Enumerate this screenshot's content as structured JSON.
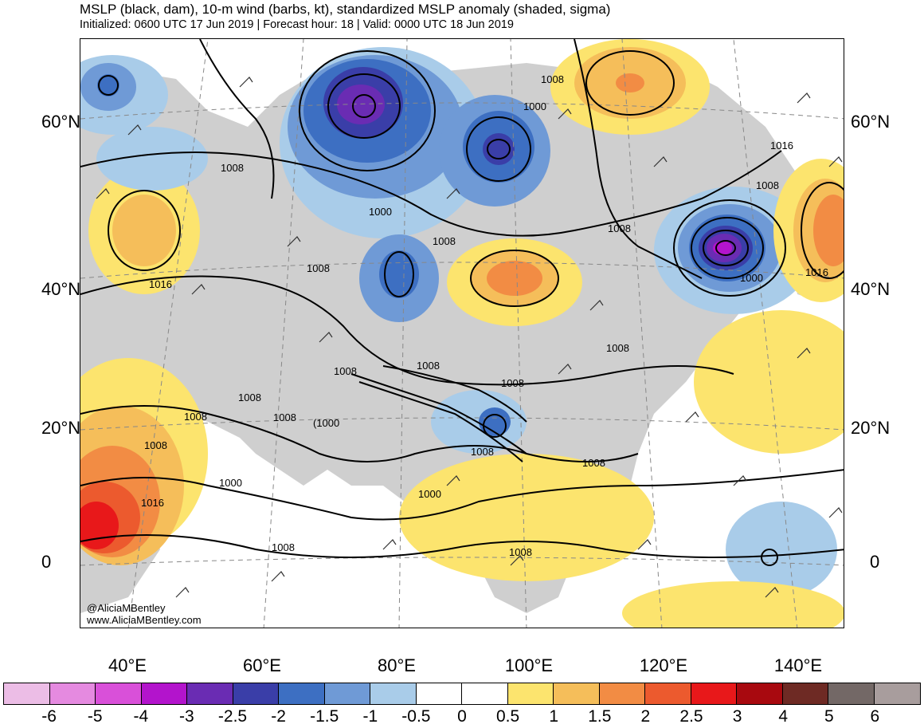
{
  "header": {
    "title": "MSLP (black, dam), 10-m wind (barbs, kt), standardized MSLP anomaly (shaded, sigma)",
    "subtitle": "Initialized: 0600 UTC 17 Jun 2019 | Forecast hour: 18 | Valid: 0000 UTC 18 Jun 2019"
  },
  "map": {
    "lat_labels_left": [
      "60°N",
      "40°N",
      "20°N",
      "0"
    ],
    "lat_labels_right": [
      "60°N",
      "40°N",
      "20°N",
      "0"
    ],
    "lon_labels": [
      "40°E",
      "60°E",
      "80°E",
      "100°E",
      "120°E",
      "140°E"
    ],
    "contour_labels": [
      "1008",
      "1000",
      "1008",
      "1000",
      "1008",
      "1016",
      "1008",
      "1008",
      "1008",
      "1008",
      "1008",
      "1016",
      "1008",
      "1000",
      "1016",
      "1008",
      "1008",
      "1008",
      "1008",
      "(1000",
      "1008",
      "1008",
      "1008",
      "1000",
      "1016",
      "1000",
      "1008",
      "1008"
    ],
    "credit_handle": "@AliciaMBentley",
    "credit_url": "www.AliciaMBentley.com"
  },
  "colorbar": {
    "labels": [
      "-6",
      "-5",
      "-4",
      "-3",
      "-2.5",
      "-2",
      "-1.5",
      "-1",
      "-0.5",
      "0",
      "0.5",
      "1",
      "1.5",
      "2",
      "2.5",
      "3",
      "4",
      "5",
      "6"
    ],
    "colors": [
      "#ecbde6",
      "#e58ae0",
      "#d950d9",
      "#b314cc",
      "#6a2cb3",
      "#3a3ea8",
      "#3d6fc2",
      "#6f9ad6",
      "#a9cce9",
      "#ffffff",
      "#ffffff",
      "#fce46e",
      "#f5be5a",
      "#f28c44",
      "#ec5a2e",
      "#e8181a",
      "#a8090f",
      "#6e2a24",
      "#736866",
      "#a89d9d"
    ]
  },
  "palette": {
    "land_gray": "#cfcfcf",
    "coast": "#555555",
    "contour": "#000000",
    "barb": "#333333"
  }
}
